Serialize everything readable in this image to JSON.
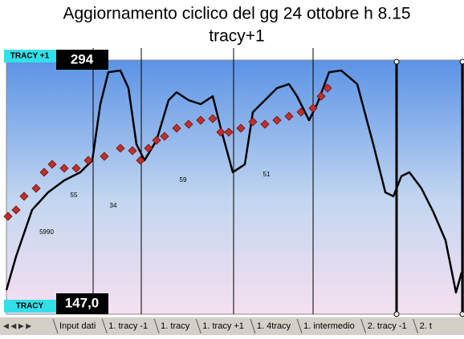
{
  "chart_data": {
    "type": "line",
    "title": "Aggiornamento ciclico del gg 24 ottobre h 8.15",
    "subtitle": "tracy+1",
    "top_box": "TRACY +1",
    "bottom_box": "TRACY",
    "xlim": [
      0,
      570
    ],
    "ylim": [
      147,
      294
    ],
    "yticks": [
      {
        "value": 147,
        "label": "147,0"
      },
      294
    ],
    "series": [
      {
        "color": "#000000",
        "x": [
          0,
          12,
          32,
          52,
          72,
          92,
          107,
          117,
          127,
          142,
          152,
          162,
          172,
          187,
          202,
          212,
          227,
          242,
          257,
          267,
          282,
          297,
          307,
          322,
          337,
          352,
          362,
          377,
          387,
          402,
          417,
          437,
          457,
          472,
          482,
          492,
          502,
          517,
          532,
          547,
          560,
          567
        ],
        "values": [
          160.9,
          180.4,
          207.3,
          217.5,
          224.4,
          229.1,
          236.0,
          268.5,
          287.0,
          288.0,
          277.8,
          245.3,
          236.0,
          247.6,
          270.8,
          275.4,
          270.8,
          268.5,
          273.1,
          254.6,
          229.1,
          233.7,
          263.9,
          270.8,
          277.8,
          280.1,
          273.1,
          259.2,
          268.5,
          287.0,
          288.0,
          280.1,
          245.3,
          217.5,
          215.2,
          226.8,
          229.1,
          219.8,
          205.9,
          189.7,
          159.5,
          171.1
        ]
      },
      {
        "color": "#c0302a",
        "x": [
          2,
          12,
          22,
          37,
          47,
          57,
          72,
          87,
          102,
          122,
          142,
          157,
          167,
          177,
          187,
          197,
          212,
          227,
          242,
          257,
          267,
          277,
          292,
          307,
          322,
          337,
          352,
          367,
          382,
          392,
          400
        ],
        "values": [
          203.6,
          207.3,
          215.2,
          219.8,
          229.1,
          233.7,
          231.4,
          231.4,
          236.0,
          238.3,
          243.0,
          241.6,
          236.0,
          243.0,
          247.6,
          249.9,
          254.6,
          256.9,
          259.2,
          260.1,
          252.3,
          252.3,
          254.6,
          258.3,
          256.9,
          259.2,
          261.5,
          263.9,
          266.2,
          273.1,
          277.8
        ]
      }
    ],
    "markers": [
      108,
      168,
      283,
      382
    ],
    "thick_markers": [
      486,
      568
    ],
    "annotations": [
      "5990",
      "55",
      "34",
      "59",
      "51"
    ],
    "sheet_tabs": [
      "Input dati",
      "1. tracy -1",
      "1. tracy",
      "1. tracy +1",
      "1. 4tracy",
      "1. intermedio",
      "2. tracy -1",
      "2. t"
    ]
  }
}
